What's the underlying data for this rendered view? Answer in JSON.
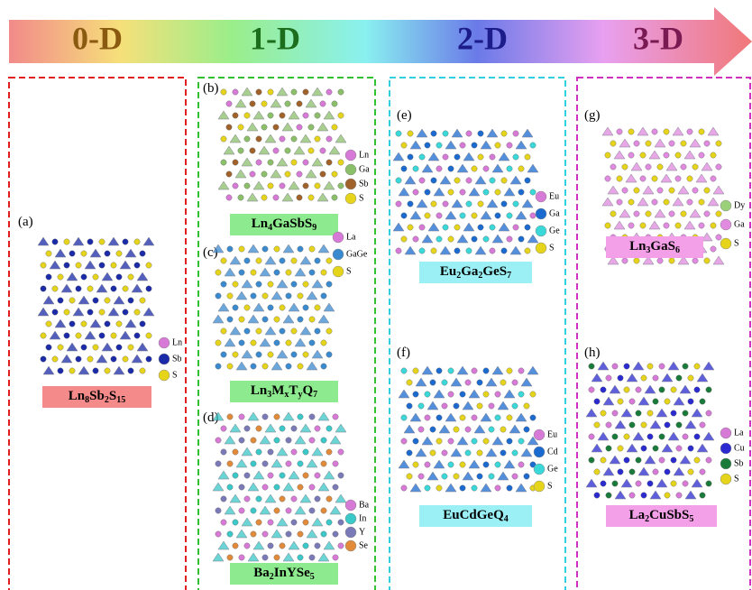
{
  "arrow": {
    "stages": [
      {
        "label": "0-D",
        "color": "#8a5a10"
      },
      {
        "label": "1-D",
        "color": "#1c6e1c"
      },
      {
        "label": "2-D",
        "color": "#1c1c8a"
      },
      {
        "label": "3-D",
        "color": "#7a1a52"
      }
    ]
  },
  "columns": [
    {
      "border": "#e02020",
      "panels": [
        {
          "letter": "(a)",
          "formula": [
            "Ln",
            "8",
            "Sb",
            "2",
            "S",
            "15"
          ],
          "label_color": "#f48a8a",
          "legend": [
            {
              "label": "Ln",
              "color": "#d77ad7"
            },
            {
              "label": "Sb",
              "color": "#1a2aa8"
            },
            {
              "label": "S",
              "color": "#e6d41a"
            }
          ]
        }
      ]
    },
    {
      "border": "#30c030",
      "panels": [
        {
          "letter": "(b)",
          "formula": [
            "Ln",
            "4",
            "GaSbS",
            "9"
          ],
          "label_color": "#8eea8e",
          "legend": [
            {
              "label": "Ln",
              "color": "#d77ad7"
            },
            {
              "label": "Ga",
              "color": "#8cbf6a"
            },
            {
              "label": "Sb",
              "color": "#a0622a"
            },
            {
              "label": "S",
              "color": "#e6d41a"
            }
          ]
        },
        {
          "letter": "(c)",
          "formula": [
            "Ln",
            "3",
            "M",
            "x",
            "T",
            "y",
            "Q",
            "7"
          ],
          "label_color": "#8eea8e",
          "legend": [
            {
              "label": "La",
              "color": "#d77ad7"
            },
            {
              "label": "GaGe",
              "color": "#3a8ad0"
            },
            {
              "label": "S",
              "color": "#e6d41a"
            }
          ]
        },
        {
          "letter": "(d)",
          "formula": [
            "Ba",
            "2",
            "InYSe",
            "5"
          ],
          "label_color": "#8eea8e",
          "legend": [
            {
              "label": "Ba",
              "color": "#d77ad7"
            },
            {
              "label": "In",
              "color": "#3ac8c8"
            },
            {
              "label": "Y",
              "color": "#7a7ab8"
            },
            {
              "label": "Se",
              "color": "#e08a3a"
            }
          ]
        }
      ]
    },
    {
      "border": "#30d0e0",
      "panels": [
        {
          "letter": "(e)",
          "formula": [
            "Eu",
            "2",
            "Ga",
            "2",
            "GeS",
            "7"
          ],
          "label_color": "#9af0f4",
          "legend": [
            {
              "label": "Eu",
              "color": "#d77ad7"
            },
            {
              "label": "Ga",
              "color": "#1a6ad0"
            },
            {
              "label": "Ge",
              "color": "#3ad8d8"
            },
            {
              "label": "S",
              "color": "#e6d41a"
            }
          ]
        },
        {
          "letter": "(f)",
          "formula": [
            "EuCdGeQ",
            "4"
          ],
          "label_color": "#9af0f4",
          "legend": [
            {
              "label": "Eu",
              "color": "#d77ad7"
            },
            {
              "label": "Cd",
              "color": "#1a6ad0"
            },
            {
              "label": "Ge",
              "color": "#3ad8d8"
            },
            {
              "label": "S",
              "color": "#e6d41a"
            }
          ]
        }
      ]
    },
    {
      "border": "#d030c0",
      "panels": [
        {
          "letter": "(g)",
          "formula": [
            "Ln",
            "3",
            "GaS",
            "6"
          ],
          "label_color": "#f4a0e8",
          "legend": [
            {
              "label": "Dy",
              "color": "#9ad07a"
            },
            {
              "label": "Ga",
              "color": "#e08ae0"
            },
            {
              "label": "S",
              "color": "#e6d41a"
            }
          ]
        },
        {
          "letter": "(h)",
          "formula": [
            "La",
            "2",
            "CuSbS",
            "5"
          ],
          "label_color": "#f4a0e8",
          "legend": [
            {
              "label": "La",
              "color": "#d77ad7"
            },
            {
              "label": "Cu",
              "color": "#2a2ad0"
            },
            {
              "label": "Sb",
              "color": "#1a7a3a"
            },
            {
              "label": "S",
              "color": "#e6d41a"
            }
          ]
        }
      ]
    }
  ]
}
